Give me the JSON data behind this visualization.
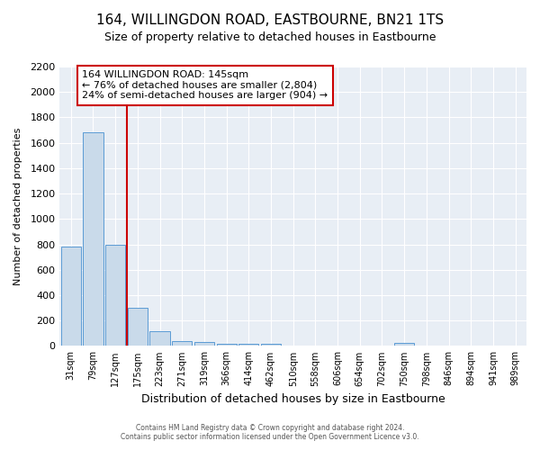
{
  "title": "164, WILLINGDON ROAD, EASTBOURNE, BN21 1TS",
  "subtitle": "Size of property relative to detached houses in Eastbourne",
  "xlabel": "Distribution of detached houses by size in Eastbourne",
  "ylabel": "Number of detached properties",
  "bar_labels": [
    "31sqm",
    "79sqm",
    "127sqm",
    "175sqm",
    "223sqm",
    "271sqm",
    "319sqm",
    "366sqm",
    "414sqm",
    "462sqm",
    "510sqm",
    "558sqm",
    "606sqm",
    "654sqm",
    "702sqm",
    "750sqm",
    "798sqm",
    "846sqm",
    "894sqm",
    "941sqm",
    "989sqm"
  ],
  "bar_values": [
    780,
    1680,
    800,
    300,
    115,
    40,
    28,
    20,
    18,
    20,
    0,
    0,
    0,
    0,
    0,
    25,
    0,
    0,
    0,
    0,
    0
  ],
  "bar_color": "#c9daea",
  "bar_edge_color": "#5b9bd5",
  "red_line_x": 2.5,
  "property_label": "164 WILLINGDON ROAD: 145sqm",
  "annotation_line1": "← 76% of detached houses are smaller (2,804)",
  "annotation_line2": "24% of semi-detached houses are larger (904) →",
  "annotation_box_facecolor": "#ffffff",
  "annotation_box_edgecolor": "#cc0000",
  "red_line_color": "#cc0000",
  "ylim": [
    0,
    2200
  ],
  "yticks": [
    0,
    200,
    400,
    600,
    800,
    1000,
    1200,
    1400,
    1600,
    1800,
    2000,
    2200
  ],
  "footer_line1": "Contains HM Land Registry data © Crown copyright and database right 2024.",
  "footer_line2": "Contains public sector information licensed under the Open Government Licence v3.0.",
  "fig_bg_color": "#ffffff",
  "plot_bg_color": "#e8eef5",
  "grid_color": "#ffffff",
  "title_fontsize": 11,
  "subtitle_fontsize": 9
}
